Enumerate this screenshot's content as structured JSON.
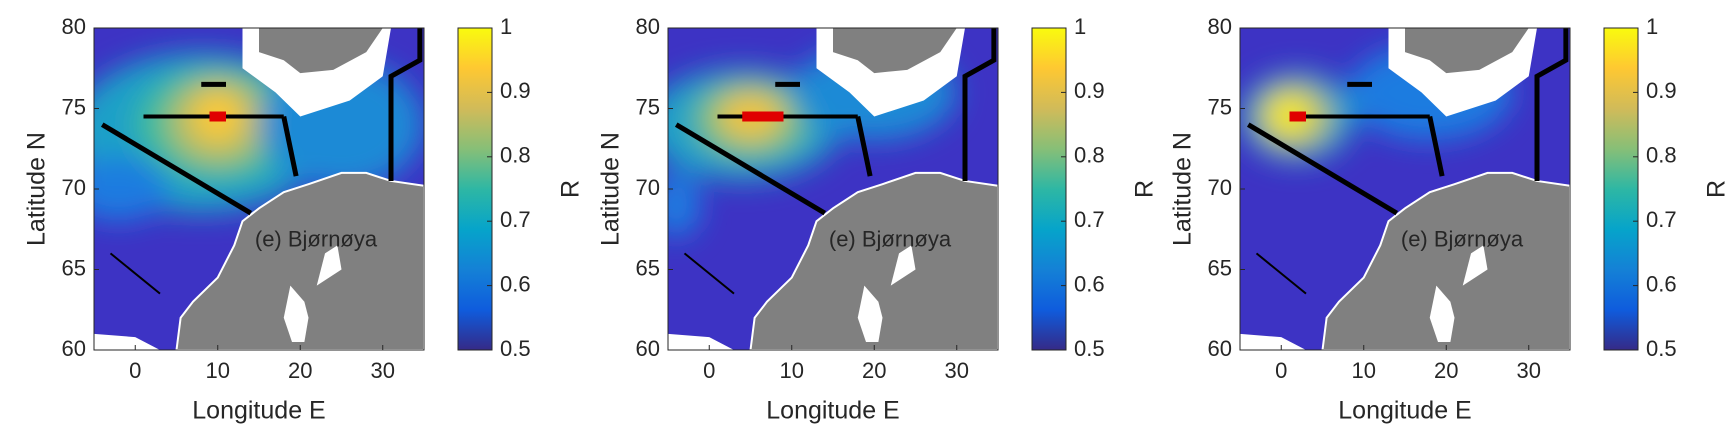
{
  "chart_data": [
    {
      "type": "map",
      "xlabel": "Longitude E",
      "ylabel": "Latitude N",
      "annotation": "(e) Bjørnøya",
      "xlim": [
        -5,
        35
      ],
      "xticks": [
        0,
        10,
        20,
        30
      ],
      "ylim": [
        60,
        80
      ],
      "yticks": [
        60,
        65,
        70,
        75,
        80
      ],
      "clim": [
        0.5,
        1
      ],
      "cticks": [
        0.5,
        0.6,
        0.7,
        0.8,
        0.9,
        1
      ],
      "colorbar_label": "R"
    },
    {
      "type": "map",
      "xlabel": "Longitude E",
      "ylabel": "Latitude N",
      "annotation": "(e) Bjørnøya",
      "xlim": [
        -5,
        35
      ],
      "xticks": [
        0,
        10,
        20,
        30
      ],
      "ylim": [
        60,
        80
      ],
      "yticks": [
        60,
        65,
        70,
        75,
        80
      ],
      "clim": [
        0.5,
        1
      ],
      "cticks": [
        0.5,
        0.6,
        0.7,
        0.8,
        0.9,
        1
      ],
      "colorbar_label": "R"
    },
    {
      "type": "map",
      "xlabel": "Longitude E",
      "ylabel": "Latitude N",
      "annotation": "(e) Bjørnøya",
      "xlim": [
        -5,
        35
      ],
      "xticks": [
        0,
        10,
        20,
        30
      ],
      "ylim": [
        60,
        80
      ],
      "yticks": [
        60,
        65,
        70,
        75,
        80
      ],
      "clim": [
        0.5,
        1
      ],
      "cticks": [
        0.5,
        0.6,
        0.7,
        0.8,
        0.9,
        1
      ],
      "colorbar_label": "R"
    }
  ]
}
